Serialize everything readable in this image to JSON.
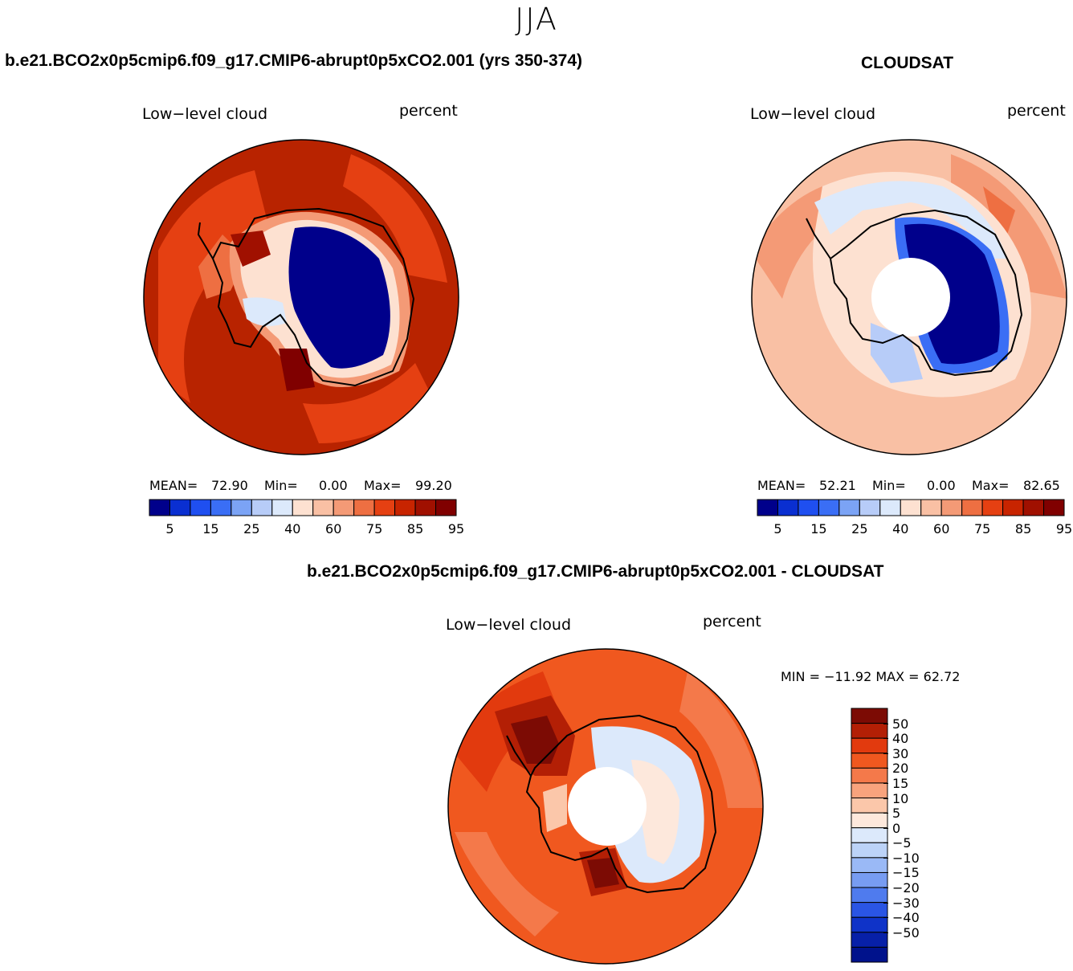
{
  "season_title": "JJA",
  "colors": {
    "blues": [
      "#00008b",
      "#0a2fd1",
      "#1f4ff0",
      "#3a6ef5",
      "#7ba3f5",
      "#b7ccf8",
      "#dce9fb"
    ],
    "reds": [
      "#fde1d1",
      "#f9c0a4",
      "#f49a76",
      "#ee6f42",
      "#e54012",
      "#c82400",
      "#a01000",
      "#800000"
    ],
    "diff_colors": [
      "#7c0b04",
      "#b31f05",
      "#e23a0e",
      "#f0581f",
      "#f4794a",
      "#f8a37d",
      "#fbc7aa",
      "#fde8dc",
      "#dce9fb",
      "#bcd3f8",
      "#9ab9f6",
      "#779cf2",
      "#4f7bee",
      "#2a55e4",
      "#0f33c8",
      "#0720a8",
      "#00128c"
    ]
  },
  "panels": {
    "model": {
      "title": "b.e21.BCO2x0p5cmip6.f09_g17.CMIP6-abrupt0p5xCO2.001 (yrs 350-374)",
      "variable": "Low−level cloud",
      "units": "percent",
      "mean_label": "MEAN=",
      "mean_value": "72.90",
      "min_label": "Min=",
      "min_value": "0.00",
      "max_label": "Max=",
      "max_value": "99.20",
      "ticks": [
        "5",
        "15",
        "25",
        "40",
        "60",
        "75",
        "85",
        "95"
      ]
    },
    "obs": {
      "title": "CLOUDSAT",
      "variable": "Low−level cloud",
      "units": "percent",
      "mean_label": "MEAN=",
      "mean_value": "52.21",
      "min_label": "Min=",
      "min_value": "0.00",
      "max_label": "Max=",
      "max_value": "82.65",
      "ticks": [
        "5",
        "15",
        "25",
        "40",
        "60",
        "75",
        "85",
        "95"
      ]
    },
    "diff": {
      "title": "b.e21.BCO2x0p5cmip6.f09_g17.CMIP6-abrupt0p5xCO2.001 - CLOUDSAT",
      "variable": "Low−level cloud",
      "units": "percent",
      "minmax_text": "MIN = −11.92  MAX =   62.72",
      "ticks": [
        "50",
        "40",
        "30",
        "20",
        "15",
        "10",
        "5",
        "0",
        "−5",
        "−10",
        "−15",
        "−20",
        "−30",
        "−40",
        "−50"
      ]
    }
  }
}
